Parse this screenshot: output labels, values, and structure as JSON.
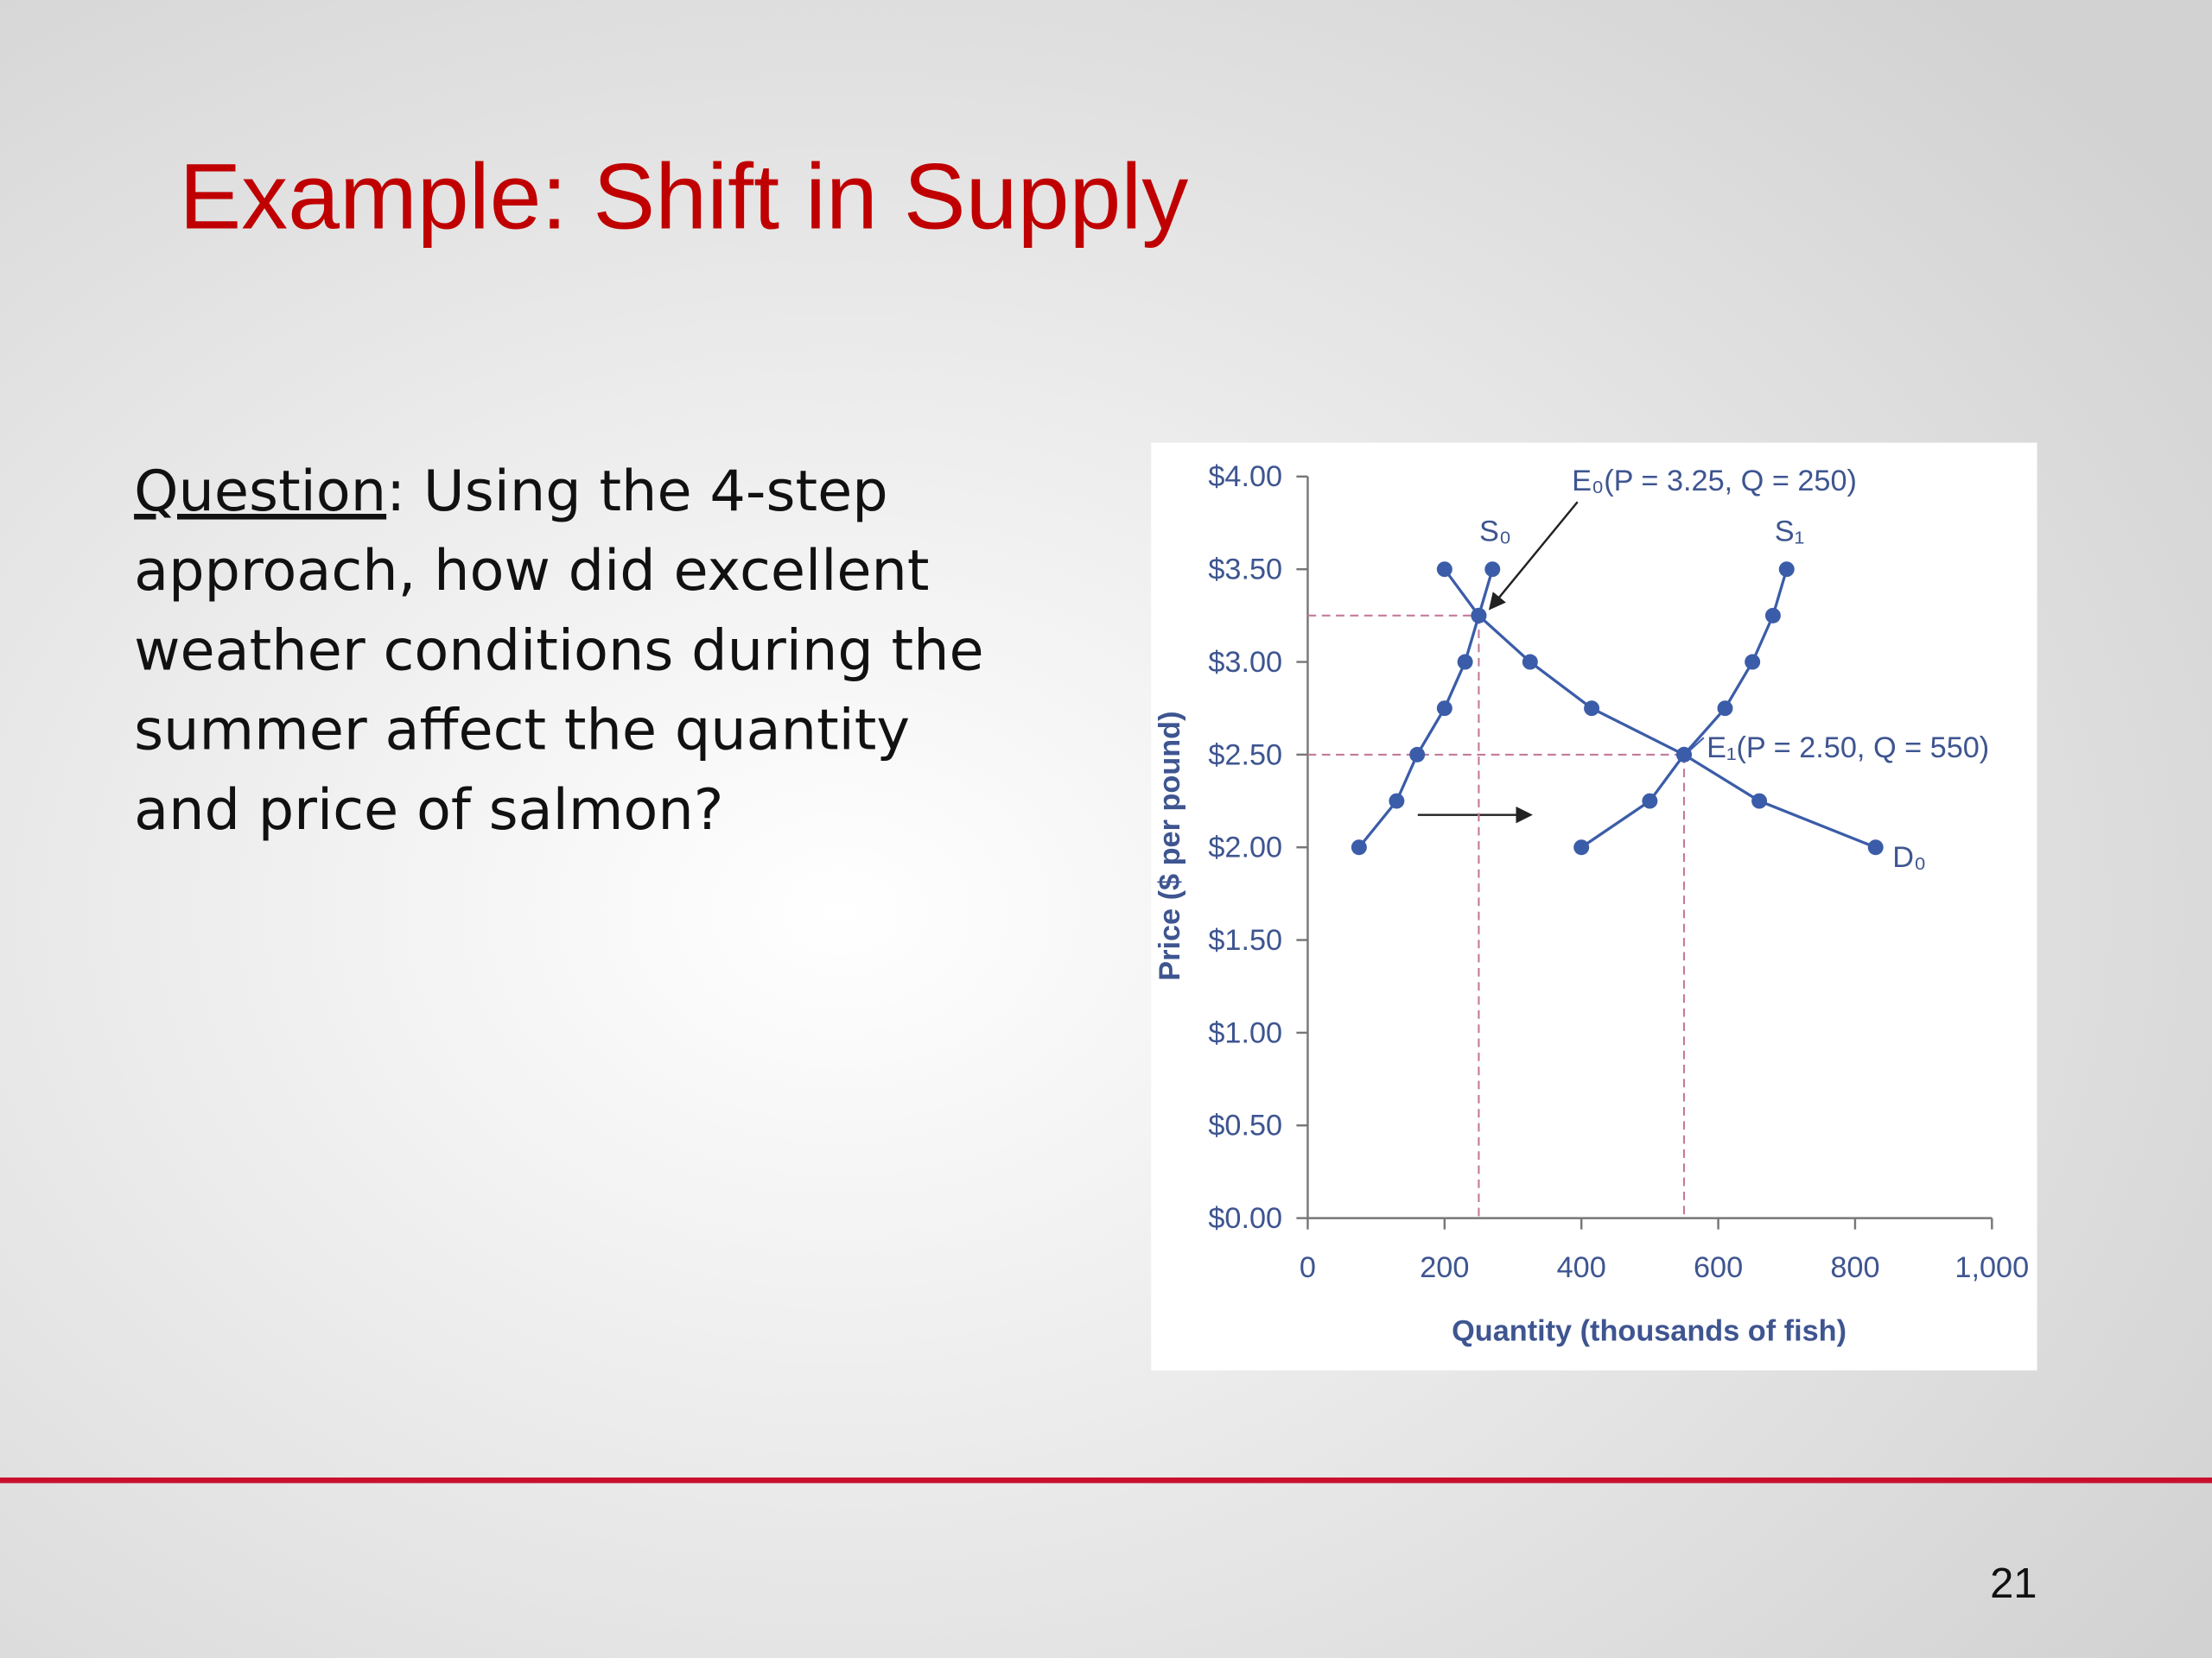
{
  "title": "Example:  Shift in Supply",
  "question": {
    "label": "Question",
    "lines": [
      ": Using the 4-step",
      "approach, how did excellent",
      "weather conditions during the",
      "summer affect the quantity",
      "and price of salmon?"
    ]
  },
  "page_number": "21",
  "chart_data": {
    "type": "line",
    "xlabel": "Quantity (thousands of fish)",
    "ylabel": "Price ($ per pound)",
    "xlim": [
      0,
      1000
    ],
    "ylim": [
      0,
      4
    ],
    "xticks": [
      0,
      200,
      400,
      600,
      800,
      {
        "value": 1000,
        "label": "1,000"
      }
    ],
    "yticks": [
      {
        "value": 0,
        "label": "$0.00"
      },
      {
        "value": 0.5,
        "label": "$0.50"
      },
      {
        "value": 1,
        "label": "$1.00"
      },
      {
        "value": 1.5,
        "label": "$1.50"
      },
      {
        "value": 2,
        "label": "$2.00"
      },
      {
        "value": 2.5,
        "label": "$2.50"
      },
      {
        "value": 3,
        "label": "$3.00"
      },
      {
        "value": 3.5,
        "label": "$3.50"
      },
      {
        "value": 4,
        "label": "$4.00"
      }
    ],
    "series": [
      {
        "name": "S₀",
        "color": "#3b5ca8",
        "x": [
          75,
          130,
          160,
          200,
          230,
          250,
          270
        ],
        "values": [
          2,
          2.25,
          2.5,
          2.75,
          3,
          3.25,
          3.5
        ]
      },
      {
        "name": "S₁",
        "color": "#3b5ca8",
        "x": [
          400,
          500,
          550,
          610,
          650,
          680,
          700
        ],
        "values": [
          2,
          2.25,
          2.5,
          2.75,
          3,
          3.25,
          3.5
        ]
      },
      {
        "name": "D₀",
        "color": "#3b5ca8",
        "x": [
          200,
          250,
          325,
          415,
          550,
          660,
          830
        ],
        "values": [
          3.5,
          3.25,
          3,
          2.75,
          2.5,
          2.25,
          2
        ]
      }
    ],
    "annotations": [
      {
        "text": "E₀(P = 3.25, Q = 250)",
        "x": 250,
        "y": 3.25
      },
      {
        "text": "E₁(P = 2.50, Q = 550)",
        "x": 550,
        "y": 2.5
      }
    ]
  }
}
